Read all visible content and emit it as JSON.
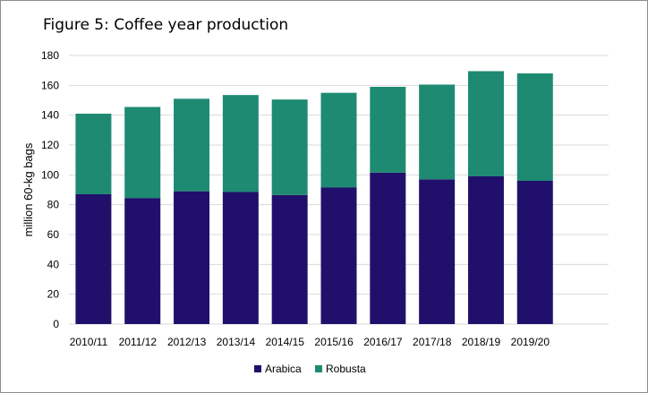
{
  "chart_data": {
    "type": "bar",
    "stacked": true,
    "title": "Figure 5: Coffee year production",
    "ylabel": "million 60-kg bags",
    "xlabel": "",
    "ylim": [
      0,
      180
    ],
    "yticks": [
      0,
      20,
      40,
      60,
      80,
      100,
      120,
      140,
      160,
      180
    ],
    "grid": true,
    "legend_position": "bottom",
    "tick_labels": [
      "2010/11",
      "2011/12",
      "2012/13",
      "2013/14",
      "2014/15",
      "2015/16",
      "2016/17",
      "2017/18",
      "2018/19",
      "2019/20",
      ""
    ],
    "series": [
      {
        "name": "Arabica",
        "color": "#21106b",
        "values": [
          87,
          84.5,
          89,
          88.5,
          86.5,
          91.5,
          101.5,
          97,
          99,
          96
        ]
      },
      {
        "name": "Robusta",
        "color": "#1e8a72",
        "values": [
          54,
          61,
          62,
          65,
          64,
          63.5,
          57.5,
          63.5,
          70.5,
          72
        ]
      }
    ]
  }
}
